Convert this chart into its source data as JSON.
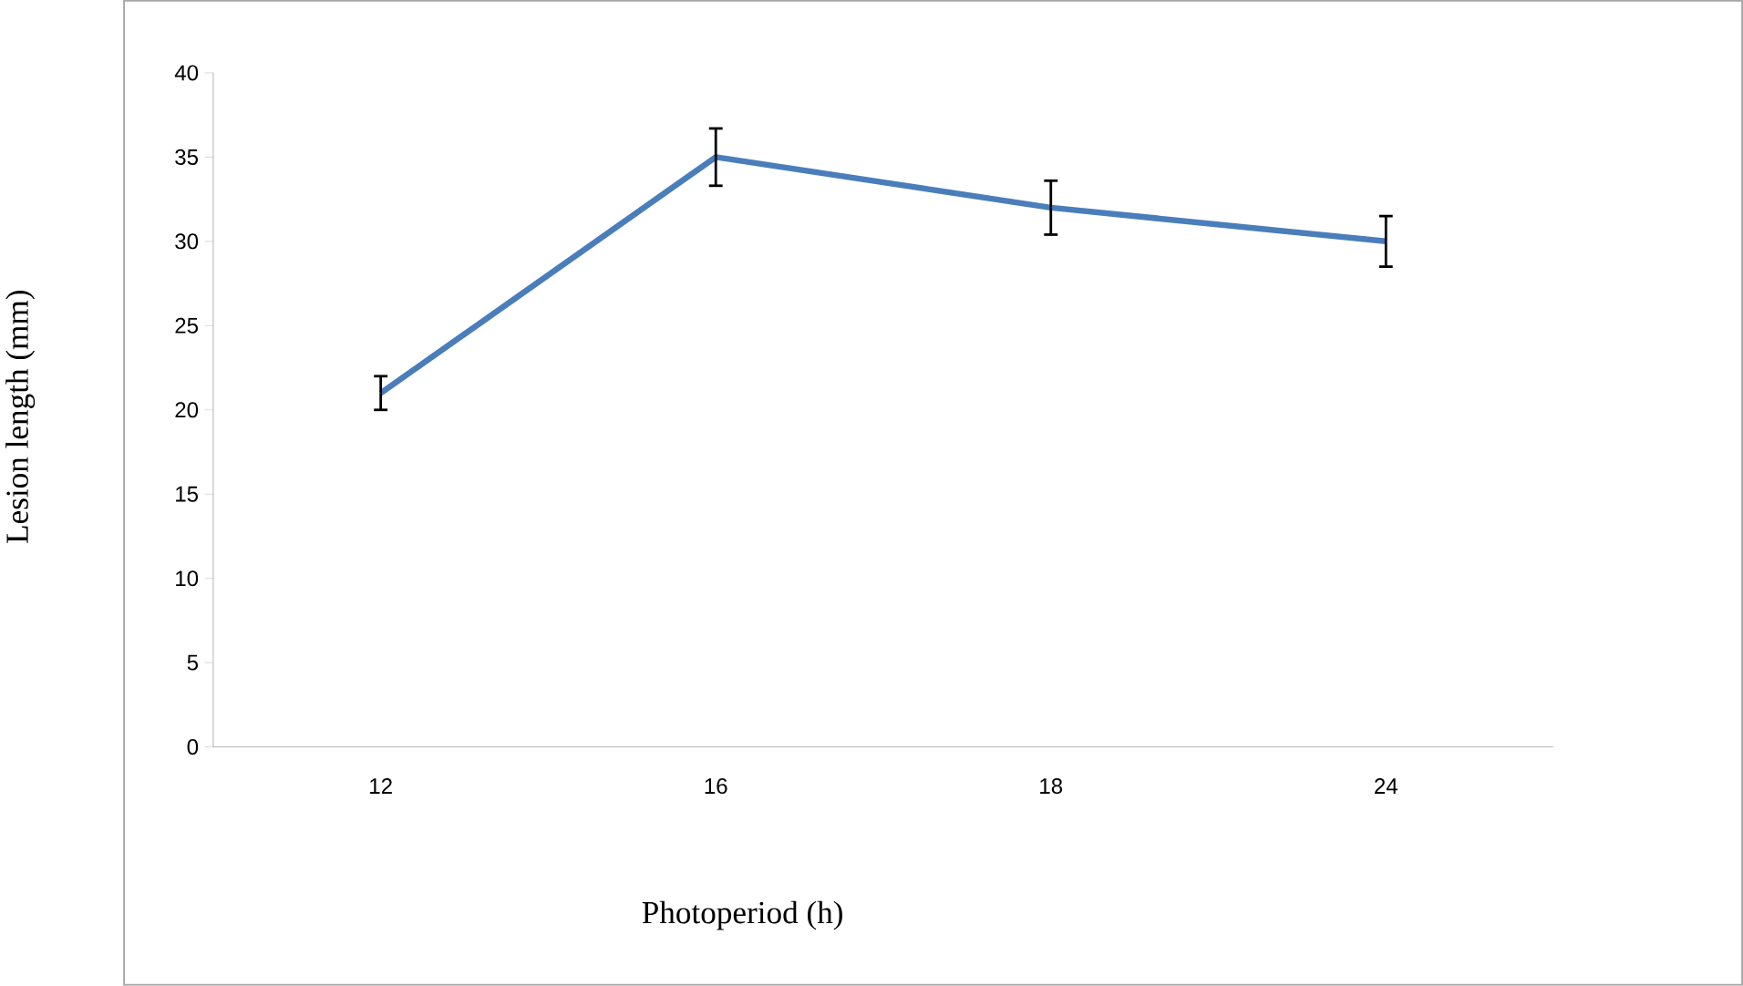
{
  "chart_data": {
    "type": "line",
    "xlabel": "Photoperiod (h)",
    "ylabel": "Lesion length (mm)",
    "categories": [
      "12",
      "16",
      "18",
      "24"
    ],
    "series": [
      {
        "color": "#4a7ebb",
        "values": [
          21,
          35,
          32,
          30
        ],
        "errors": [
          1,
          1.7,
          1.6,
          1.5
        ]
      }
    ],
    "ylim": [
      0,
      40
    ],
    "yticks": [
      0,
      5,
      10,
      15,
      20,
      25,
      30,
      35,
      40
    ],
    "marker": "none",
    "line_style": "solid"
  }
}
